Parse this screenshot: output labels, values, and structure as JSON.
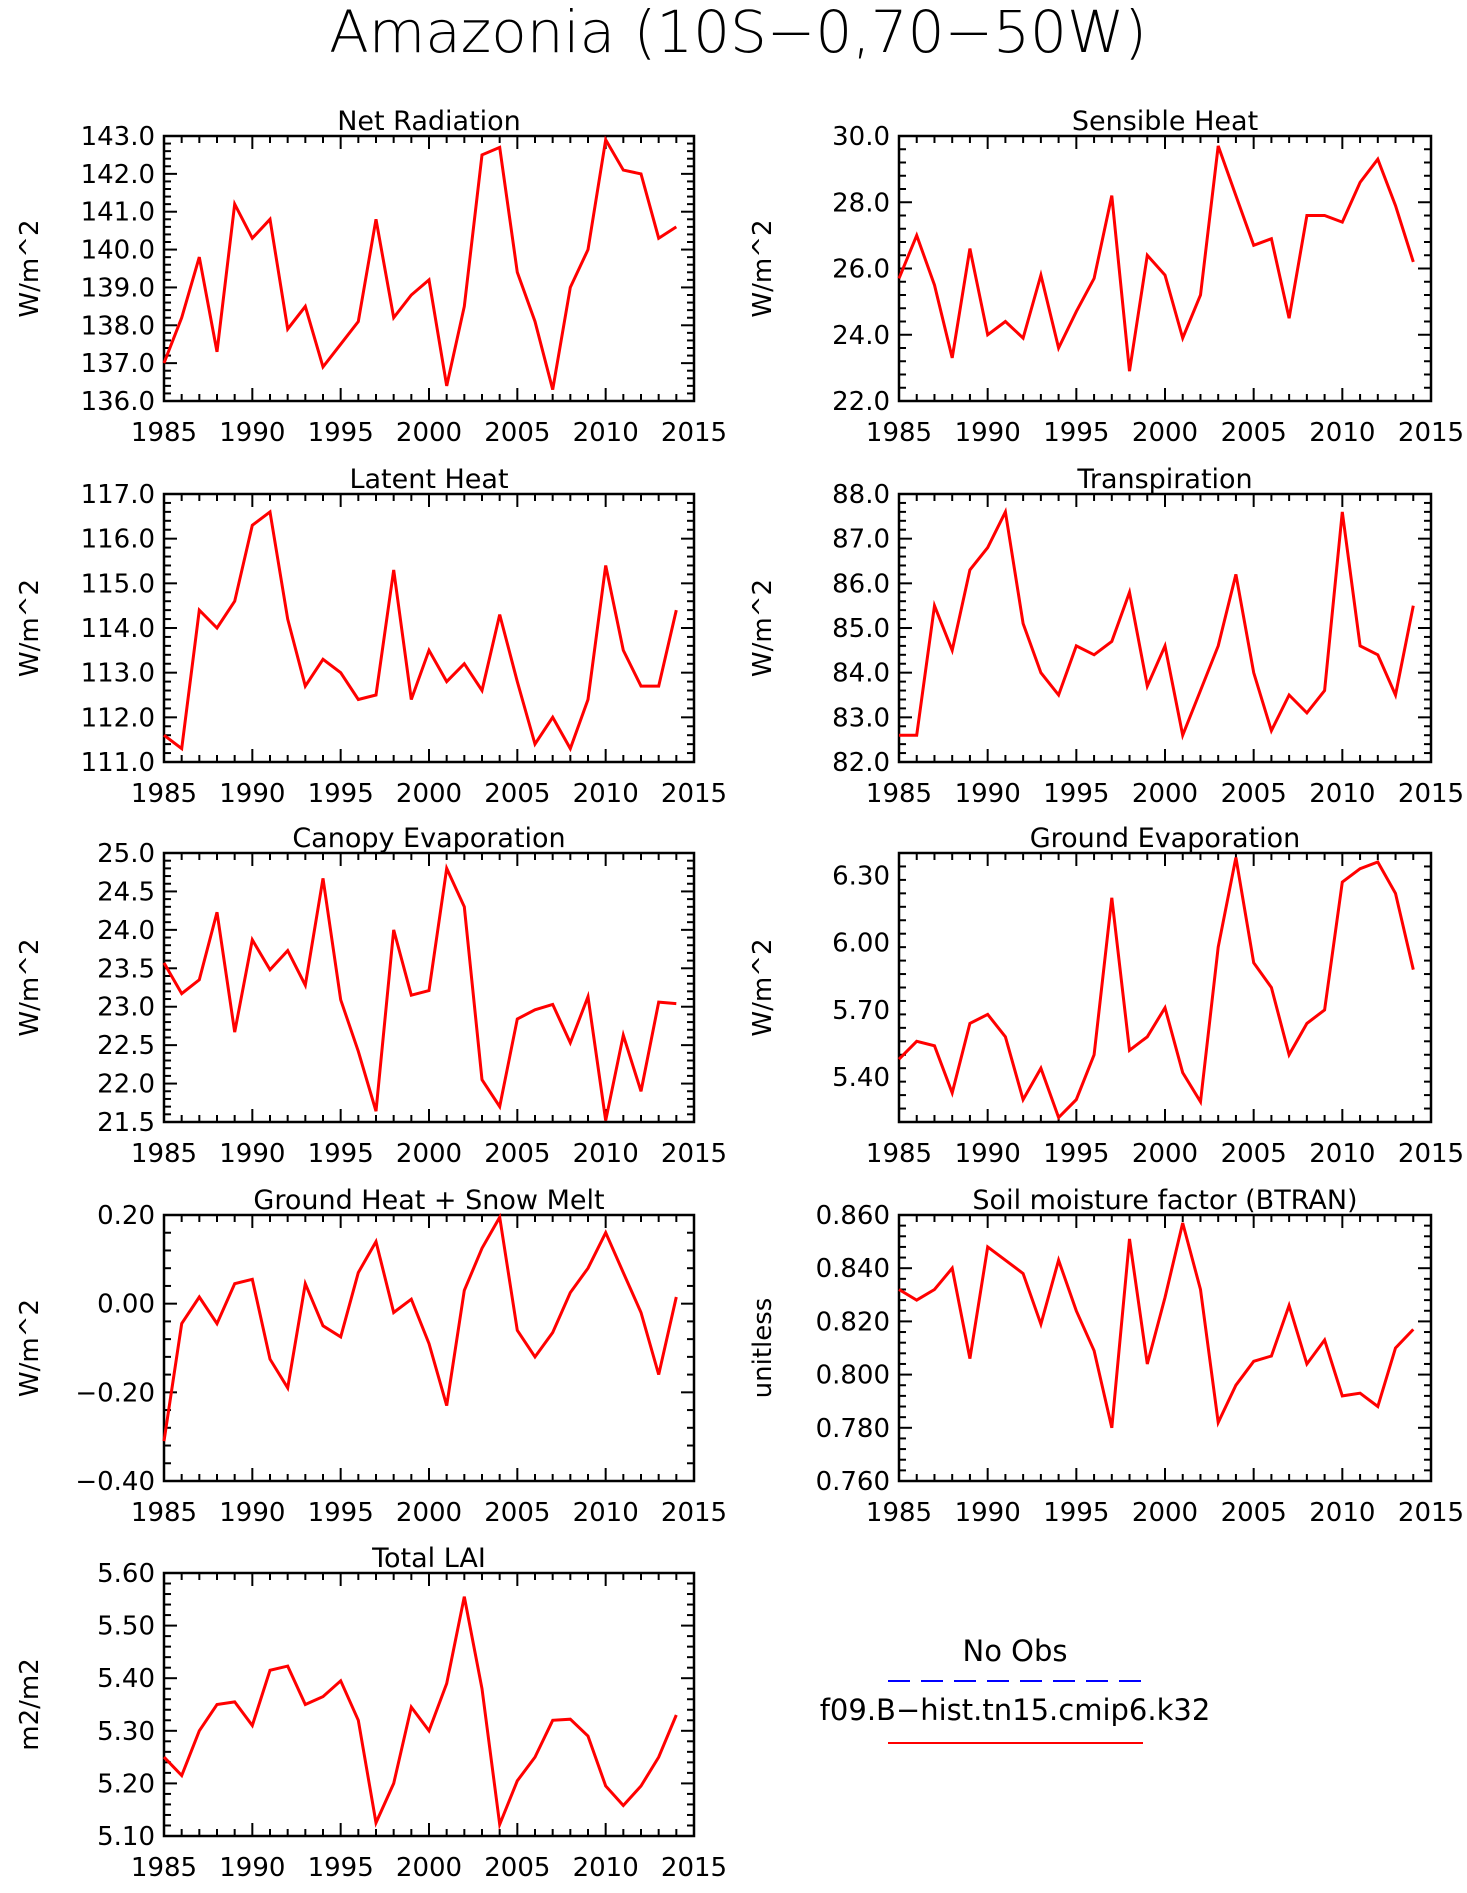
{
  "title": "Amazonia (10S−0,70−50W)",
  "chart_data": [
    {
      "type": "line",
      "title": "Net Radiation",
      "ylabel": "W/m^2",
      "ylim": [
        136.0,
        143.0
      ],
      "yticks": [
        "136.0",
        "137.0",
        "138.0",
        "139.0",
        "140.0",
        "141.0",
        "142.0",
        "143.0"
      ],
      "xlim": [
        1985,
        2015
      ],
      "xticks": [
        "1985",
        "1990",
        "1995",
        "2000",
        "2005",
        "2010",
        "2015"
      ],
      "x": [
        1985,
        1986,
        1987,
        1988,
        1989,
        1990,
        1991,
        1992,
        1993,
        1994,
        1995,
        1996,
        1997,
        1998,
        1999,
        2000,
        2001,
        2002,
        2003,
        2004,
        2005,
        2006,
        2007,
        2008,
        2009,
        2010,
        2011,
        2012,
        2013,
        2014
      ],
      "series": [
        {
          "name": "f09.B−hist.tn15.cmip6.k32",
          "color": "#ff0000",
          "values": [
            137.0,
            138.2,
            139.8,
            137.3,
            141.2,
            140.3,
            140.8,
            137.9,
            138.5,
            136.9,
            137.5,
            138.1,
            140.8,
            138.2,
            138.8,
            139.2,
            136.4,
            138.5,
            142.5,
            142.7,
            139.4,
            138.1,
            136.3,
            139.0,
            140.0,
            142.9,
            142.1,
            142.0,
            140.3,
            140.6
          ]
        }
      ]
    },
    {
      "type": "line",
      "title": "Sensible Heat",
      "ylabel": "W/m^2",
      "ylim": [
        22.0,
        30.0
      ],
      "yticks": [
        "22.0",
        "24.0",
        "26.0",
        "28.0",
        "30.0"
      ],
      "xlim": [
        1985,
        2015
      ],
      "xticks": [
        "1985",
        "1990",
        "1995",
        "2000",
        "2005",
        "2010",
        "2015"
      ],
      "x": [
        1985,
        1986,
        1987,
        1988,
        1989,
        1990,
        1991,
        1992,
        1993,
        1994,
        1995,
        1996,
        1997,
        1998,
        1999,
        2000,
        2001,
        2002,
        2003,
        2004,
        2005,
        2006,
        2007,
        2008,
        2009,
        2010,
        2011,
        2012,
        2013,
        2014
      ],
      "series": [
        {
          "name": "f09.B−hist.tn15.cmip6.k32",
          "color": "#ff0000",
          "values": [
            25.7,
            27.0,
            25.5,
            23.3,
            26.6,
            24.0,
            24.4,
            23.9,
            25.8,
            23.6,
            24.7,
            25.7,
            28.2,
            22.9,
            26.4,
            25.8,
            23.9,
            25.2,
            29.7,
            28.2,
            26.7,
            26.9,
            24.5,
            27.6,
            27.6,
            27.4,
            28.6,
            29.3,
            27.9,
            26.2
          ]
        }
      ]
    },
    {
      "type": "line",
      "title": "Latent Heat",
      "ylabel": "W/m^2",
      "ylim": [
        111.0,
        117.0
      ],
      "yticks": [
        "111.0",
        "112.0",
        "113.0",
        "114.0",
        "115.0",
        "116.0",
        "117.0"
      ],
      "xlim": [
        1985,
        2015
      ],
      "xticks": [
        "1985",
        "1990",
        "1995",
        "2000",
        "2005",
        "2010",
        "2015"
      ],
      "x": [
        1985,
        1986,
        1987,
        1988,
        1989,
        1990,
        1991,
        1992,
        1993,
        1994,
        1995,
        1996,
        1997,
        1998,
        1999,
        2000,
        2001,
        2002,
        2003,
        2004,
        2005,
        2006,
        2007,
        2008,
        2009,
        2010,
        2011,
        2012,
        2013,
        2014
      ],
      "series": [
        {
          "name": "f09.B−hist.tn15.cmip6.k32",
          "color": "#ff0000",
          "values": [
            111.6,
            111.3,
            114.4,
            114.0,
            114.6,
            116.3,
            116.6,
            114.2,
            112.7,
            113.3,
            113.0,
            112.4,
            112.5,
            115.3,
            112.4,
            113.5,
            112.8,
            113.2,
            112.6,
            114.3,
            112.8,
            111.4,
            112.0,
            111.3,
            112.4,
            115.4,
            113.5,
            112.7,
            112.7,
            114.4
          ]
        }
      ]
    },
    {
      "type": "line",
      "title": "Transpiration",
      "ylabel": "W/m^2",
      "ylim": [
        82.0,
        88.0
      ],
      "yticks": [
        "82.0",
        "83.0",
        "84.0",
        "85.0",
        "86.0",
        "87.0",
        "88.0"
      ],
      "xlim": [
        1985,
        2015
      ],
      "xticks": [
        "1985",
        "1990",
        "1995",
        "2000",
        "2005",
        "2010",
        "2015"
      ],
      "x": [
        1985,
        1986,
        1987,
        1988,
        1989,
        1990,
        1991,
        1992,
        1993,
        1994,
        1995,
        1996,
        1997,
        1998,
        1999,
        2000,
        2001,
        2002,
        2003,
        2004,
        2005,
        2006,
        2007,
        2008,
        2009,
        2010,
        2011,
        2012,
        2013,
        2014
      ],
      "series": [
        {
          "name": "f09.B−hist.tn15.cmip6.k32",
          "color": "#ff0000",
          "values": [
            82.6,
            82.6,
            85.5,
            84.5,
            86.3,
            86.8,
            87.6,
            85.1,
            84.0,
            83.5,
            84.6,
            84.4,
            84.7,
            85.8,
            83.7,
            84.6,
            82.6,
            83.6,
            84.6,
            86.2,
            84.0,
            82.7,
            83.5,
            83.1,
            83.6,
            87.6,
            84.6,
            84.4,
            83.5,
            85.5
          ]
        }
      ]
    },
    {
      "type": "line",
      "title": "Canopy Evaporation",
      "ylabel": "W/m^2",
      "ylim": [
        21.5,
        25.0
      ],
      "yticks": [
        "21.5",
        "22.0",
        "22.5",
        "23.0",
        "23.5",
        "24.0",
        "24.5",
        "25.0"
      ],
      "xlim": [
        1985,
        2015
      ],
      "xticks": [
        "1985",
        "1990",
        "1995",
        "2000",
        "2005",
        "2010",
        "2015"
      ],
      "x": [
        1985,
        1986,
        1987,
        1988,
        1989,
        1990,
        1991,
        1992,
        1993,
        1994,
        1995,
        1996,
        1997,
        1998,
        1999,
        2000,
        2001,
        2002,
        2003,
        2004,
        2005,
        2006,
        2007,
        2008,
        2009,
        2010,
        2011,
        2012,
        2013,
        2014
      ],
      "series": [
        {
          "name": "f09.B−hist.tn15.cmip6.k32",
          "color": "#ff0000",
          "values": [
            23.57,
            23.17,
            23.35,
            24.23,
            22.67,
            23.87,
            23.48,
            23.73,
            23.28,
            24.67,
            23.09,
            22.42,
            21.64,
            24.0,
            23.15,
            23.21,
            24.8,
            24.3,
            22.05,
            21.7,
            22.84,
            22.96,
            23.03,
            22.53,
            23.13,
            21.52,
            22.63,
            21.9,
            23.06,
            23.04
          ]
        }
      ]
    },
    {
      "type": "line",
      "title": "Ground Evaporation",
      "ylabel": "W/m^2",
      "ylim": [
        5.2,
        6.4
      ],
      "yticks": [
        "5.40",
        "5.70",
        "6.00",
        "6.30"
      ],
      "xlim": [
        1985,
        2015
      ],
      "xticks": [
        "1985",
        "1990",
        "1995",
        "2000",
        "2005",
        "2010",
        "2015"
      ],
      "x": [
        1985,
        1986,
        1987,
        1988,
        1989,
        1990,
        1991,
        1992,
        1993,
        1994,
        1995,
        1996,
        1997,
        1998,
        1999,
        2000,
        2001,
        2002,
        2003,
        2004,
        2005,
        2006,
        2007,
        2008,
        2009,
        2010,
        2011,
        2012,
        2013,
        2014
      ],
      "series": [
        {
          "name": "f09.B−hist.tn15.cmip6.k32",
          "color": "#ff0000",
          "values": [
            5.48,
            5.56,
            5.54,
            5.33,
            5.64,
            5.68,
            5.58,
            5.3,
            5.44,
            5.22,
            5.3,
            5.5,
            6.2,
            5.52,
            5.58,
            5.71,
            5.42,
            5.29,
            5.98,
            6.38,
            5.91,
            5.8,
            5.5,
            5.64,
            5.7,
            6.27,
            6.33,
            6.36,
            6.22,
            5.88
          ]
        }
      ]
    },
    {
      "type": "line",
      "title": "Ground Heat + Snow Melt",
      "ylabel": "W/m^2",
      "ylim": [
        -0.4,
        0.2
      ],
      "yticks": [
        "−0.40",
        "−0.20",
        "0.00",
        "0.20"
      ],
      "xlim": [
        1985,
        2015
      ],
      "xticks": [
        "1985",
        "1990",
        "1995",
        "2000",
        "2005",
        "2010",
        "2015"
      ],
      "x": [
        1985,
        1986,
        1987,
        1988,
        1989,
        1990,
        1991,
        1992,
        1993,
        1994,
        1995,
        1996,
        1997,
        1998,
        1999,
        2000,
        2001,
        2002,
        2003,
        2004,
        2005,
        2006,
        2007,
        2008,
        2009,
        2010,
        2011,
        2012,
        2013,
        2014
      ],
      "series": [
        {
          "name": "f09.B−hist.tn15.cmip6.k32",
          "color": "#ff0000",
          "values": [
            -0.31,
            -0.045,
            0.015,
            -0.045,
            0.045,
            0.055,
            -0.125,
            -0.19,
            0.045,
            -0.05,
            -0.075,
            0.07,
            0.14,
            -0.02,
            0.01,
            -0.09,
            -0.23,
            0.03,
            0.125,
            0.195,
            -0.06,
            -0.12,
            -0.065,
            0.025,
            0.08,
            0.16,
            0.07,
            -0.02,
            -0.16,
            0.015
          ]
        }
      ]
    },
    {
      "type": "line",
      "title": "Soil moisture factor (BTRAN)",
      "ylabel": "unitless",
      "ylim": [
        0.76,
        0.86
      ],
      "yticks": [
        "0.760",
        "0.780",
        "0.800",
        "0.820",
        "0.840",
        "0.860"
      ],
      "xlim": [
        1985,
        2015
      ],
      "xticks": [
        "1985",
        "1990",
        "1995",
        "2000",
        "2005",
        "2010",
        "2015"
      ],
      "x": [
        1985,
        1986,
        1987,
        1988,
        1989,
        1990,
        1991,
        1992,
        1993,
        1994,
        1995,
        1996,
        1997,
        1998,
        1999,
        2000,
        2001,
        2002,
        2003,
        2004,
        2005,
        2006,
        2007,
        2008,
        2009,
        2010,
        2011,
        2012,
        2013,
        2014
      ],
      "series": [
        {
          "name": "f09.B−hist.tn15.cmip6.k32",
          "color": "#ff0000",
          "values": [
            0.832,
            0.828,
            0.832,
            0.84,
            0.806,
            0.848,
            0.843,
            0.838,
            0.819,
            0.843,
            0.824,
            0.809,
            0.78,
            0.851,
            0.804,
            0.829,
            0.857,
            0.832,
            0.782,
            0.796,
            0.805,
            0.807,
            0.826,
            0.804,
            0.813,
            0.792,
            0.793,
            0.788,
            0.81,
            0.817
          ]
        }
      ]
    },
    {
      "type": "line",
      "title": "Total LAI",
      "ylabel": "m2/m2",
      "ylim": [
        5.1,
        5.6
      ],
      "yticks": [
        "5.10",
        "5.20",
        "5.30",
        "5.40",
        "5.50",
        "5.60"
      ],
      "xlim": [
        1985,
        2015
      ],
      "xticks": [
        "1985",
        "1990",
        "1995",
        "2000",
        "2005",
        "2010",
        "2015"
      ],
      "x": [
        1985,
        1986,
        1987,
        1988,
        1989,
        1990,
        1991,
        1992,
        1993,
        1994,
        1995,
        1996,
        1997,
        1998,
        1999,
        2000,
        2001,
        2002,
        2003,
        2004,
        2005,
        2006,
        2007,
        2008,
        2009,
        2010,
        2011,
        2012,
        2013,
        2014
      ],
      "series": [
        {
          "name": "f09.B−hist.tn15.cmip6.k32",
          "color": "#ff0000",
          "values": [
            5.25,
            5.215,
            5.3,
            5.35,
            5.355,
            5.31,
            5.415,
            5.423,
            5.35,
            5.365,
            5.395,
            5.32,
            5.125,
            5.2,
            5.345,
            5.3,
            5.39,
            5.555,
            5.38,
            5.122,
            5.205,
            5.25,
            5.32,
            5.322,
            5.29,
            5.195,
            5.158,
            5.195,
            5.25,
            5.33
          ]
        }
      ]
    }
  ],
  "legend": {
    "items": [
      {
        "label": "No Obs",
        "color": "#0000ff",
        "dash": "dashed"
      },
      {
        "label": "f09.B−hist.tn15.cmip6.k32",
        "color": "#ff0000",
        "dash": "solid"
      }
    ]
  }
}
